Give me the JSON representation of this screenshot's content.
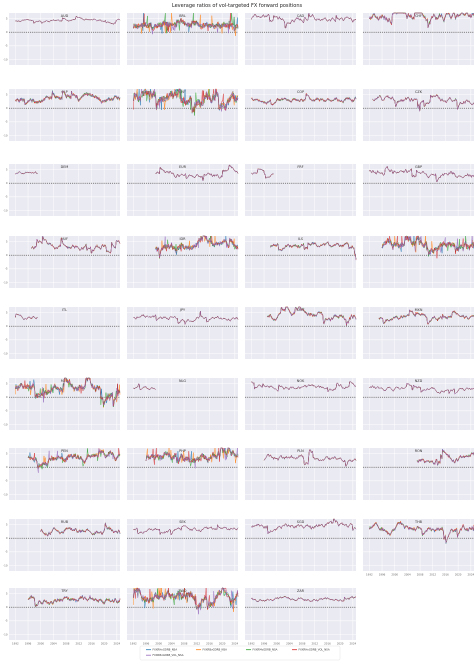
{
  "figure": {
    "title": "Leverage ratios of vol-targeted FX forward positions"
  },
  "chart_data": {
    "type": "line",
    "layout": "small-multiples-grid",
    "grid": true,
    "shared_x_axis": true,
    "x_tick_labels": [
      "1992",
      "1996",
      "2000",
      "2004",
      "2008",
      "2012",
      "2016",
      "2020",
      "2024"
    ],
    "x_range": [
      1990,
      2025
    ],
    "y_tick_labels": [
      "5",
      "0",
      "-5",
      "-10"
    ],
    "y_range": [
      -12,
      7
    ],
    "reference_line": {
      "y": 0,
      "style": "dashed",
      "color": "#111111"
    },
    "legend": {
      "placement": "bottom-center",
      "entries": [
        "FXXRHvGDRB_NSA",
        "FXXRBvGDRB_NSA",
        "FXXRMvGDRB_NSA",
        "FXXRHvGDRB_VOL_NSA",
        "FXXRBvGDRB_VOL_NSA"
      ]
    },
    "series_colors": [
      "#1f77b4",
      "#ff7f0e",
      "#2ca02c",
      "#d62728",
      "#9467bd"
    ],
    "panels": [
      {
        "name": "AUD",
        "start": 1992,
        "end": 2025,
        "level": 4.3,
        "vol": 0.6,
        "spread": 0.0
      },
      {
        "name": "BRL",
        "start": 1992,
        "end": 2025,
        "level": 2.6,
        "vol": 0.7,
        "spread": 3.2
      },
      {
        "name": "CAD",
        "start": 1992,
        "end": 2025,
        "level": 5.0,
        "vol": 1.3,
        "spread": 0.0
      },
      {
        "name": "CHF",
        "start": 1992,
        "end": 2025,
        "level": 5.6,
        "vol": 2.2,
        "spread": 1.2
      },
      {
        "name": "CLP",
        "start": 1992,
        "end": 2025,
        "level": 3.3,
        "vol": 1.3,
        "spread": 1.5
      },
      {
        "name": "CNY",
        "start": 1992,
        "end": 2025,
        "level": 3.9,
        "vol": 2.0,
        "spread": 4.0
      },
      {
        "name": "COP",
        "start": 1992,
        "end": 2025,
        "level": 3.6,
        "vol": 1.2,
        "spread": 0.9
      },
      {
        "name": "CZK",
        "start": 1993,
        "end": 2025,
        "level": 3.3,
        "vol": 1.6,
        "spread": 0.4
      },
      {
        "name": "DEM",
        "start": 1992,
        "end": 1999,
        "level": 3.2,
        "vol": 0.8,
        "spread": 0.2
      },
      {
        "name": "EUR",
        "start": 1999,
        "end": 2025,
        "level": 3.2,
        "vol": 1.3,
        "spread": 0.0
      },
      {
        "name": "FRF",
        "start": 1992,
        "end": 1999,
        "level": 3.5,
        "vol": 0.9,
        "spread": 0.2
      },
      {
        "name": "GBP",
        "start": 1992,
        "end": 2025,
        "level": 3.8,
        "vol": 1.5,
        "spread": 0.0
      },
      {
        "name": "HUF",
        "start": 1997,
        "end": 2025,
        "level": 3.3,
        "vol": 1.5,
        "spread": 0.6
      },
      {
        "name": "IDR",
        "start": 1999,
        "end": 2025,
        "level": 3.6,
        "vol": 1.6,
        "spread": 2.5
      },
      {
        "name": "ILS",
        "start": 1998,
        "end": 2025,
        "level": 3.5,
        "vol": 1.2,
        "spread": 0.9
      },
      {
        "name": "INR",
        "start": 1996,
        "end": 2025,
        "level": 3.8,
        "vol": 1.4,
        "spread": 3.0
      },
      {
        "name": "ITL",
        "start": 1992,
        "end": 1999,
        "level": 3.4,
        "vol": 1.0,
        "spread": 0.2
      },
      {
        "name": "JPY",
        "start": 1992,
        "end": 2025,
        "level": 3.2,
        "vol": 1.0,
        "spread": 0.0
      },
      {
        "name": "KRW",
        "start": 1997,
        "end": 2025,
        "level": 3.8,
        "vol": 1.6,
        "spread": 1.0
      },
      {
        "name": "MXN",
        "start": 1995,
        "end": 2025,
        "level": 3.1,
        "vol": 1.1,
        "spread": 0.9
      },
      {
        "name": "MYR",
        "start": 1992,
        "end": 2025,
        "level": 3.5,
        "vol": 1.9,
        "spread": 2.5
      },
      {
        "name": "NLG",
        "start": 1992,
        "end": 1999,
        "level": 3.2,
        "vol": 0.8,
        "spread": 0.2
      },
      {
        "name": "NOK",
        "start": 1992,
        "end": 2025,
        "level": 3.5,
        "vol": 1.1,
        "spread": 0.0
      },
      {
        "name": "NZD",
        "start": 1992,
        "end": 2025,
        "level": 3.1,
        "vol": 1.0,
        "spread": 0.0
      },
      {
        "name": "PEN",
        "start": 1996,
        "end": 2025,
        "level": 3.4,
        "vol": 1.6,
        "spread": 2.0
      },
      {
        "name": "PHP",
        "start": 1996,
        "end": 2025,
        "level": 3.8,
        "vol": 1.8,
        "spread": 2.6
      },
      {
        "name": "PLN",
        "start": 1996,
        "end": 2025,
        "level": 3.1,
        "vol": 1.4,
        "spread": 0.3
      },
      {
        "name": "RON",
        "start": 2007,
        "end": 2025,
        "level": 3.0,
        "vol": 1.6,
        "spread": 0.9
      },
      {
        "name": "RUB",
        "start": 2000,
        "end": 2025,
        "level": 2.9,
        "vol": 1.5,
        "spread": 0.9
      },
      {
        "name": "SEK",
        "start": 1992,
        "end": 2025,
        "level": 3.2,
        "vol": 1.0,
        "spread": 0.0
      },
      {
        "name": "SGD",
        "start": 1992,
        "end": 2025,
        "level": 4.4,
        "vol": 1.5,
        "spread": 0.2
      },
      {
        "name": "THB",
        "start": 1992,
        "end": 2025,
        "level": 3.6,
        "vol": 1.6,
        "spread": 1.2
      },
      {
        "name": "TRY",
        "start": 1996,
        "end": 2025,
        "level": 3.0,
        "vol": 1.5,
        "spread": 1.2
      },
      {
        "name": "TWD",
        "start": 1992,
        "end": 2025,
        "level": 4.0,
        "vol": 2.0,
        "spread": 3.2
      },
      {
        "name": "ZAR",
        "start": 1992,
        "end": 2025,
        "level": 2.9,
        "vol": 0.9,
        "spread": 0.3
      }
    ]
  }
}
